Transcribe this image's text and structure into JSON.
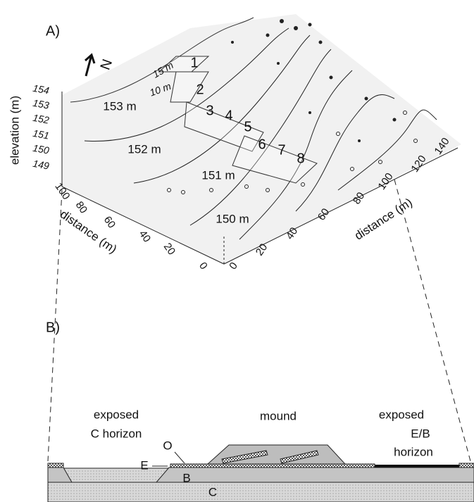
{
  "panel_a": {
    "label": "A)",
    "north": "N",
    "elevation_axis": {
      "title": "elevation (m)",
      "ticks": [
        "154",
        "153",
        "152",
        "151",
        "150",
        "149"
      ]
    },
    "left_axis": {
      "title": "distance (m)",
      "ticks": [
        "100",
        "80",
        "60",
        "40",
        "20",
        "0"
      ]
    },
    "right_axis": {
      "title": "distance (m)",
      "ticks": [
        "0",
        "20",
        "40",
        "60",
        "80",
        "100",
        "120",
        "140"
      ]
    },
    "contours": [
      "153 m",
      "152 m",
      "151 m",
      "150 m"
    ],
    "plots": [
      "1",
      "2",
      "3",
      "4",
      "5",
      "6",
      "7",
      "8"
    ],
    "plot_dims": [
      "15 m",
      "10 m"
    ]
  },
  "panel_b": {
    "label": "B)",
    "labels": [
      "exposed",
      "C horizon",
      "mound",
      "exposed",
      "E/B",
      "horizon",
      "O",
      "E",
      "B",
      "C"
    ]
  }
}
